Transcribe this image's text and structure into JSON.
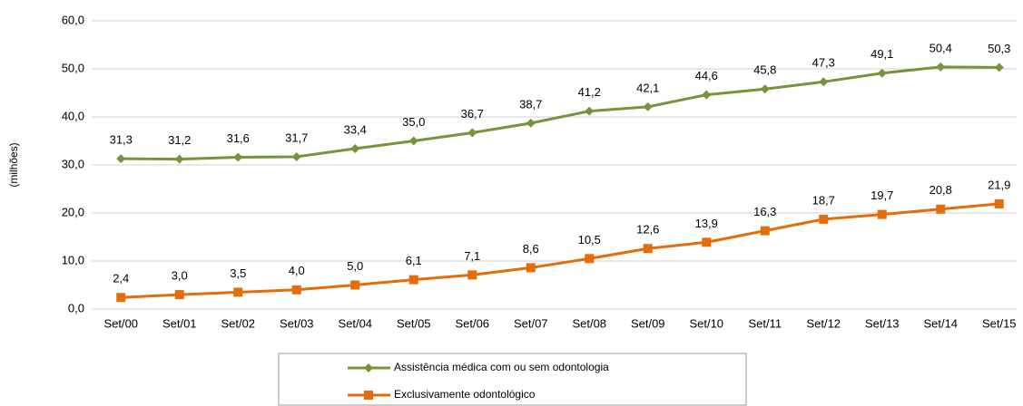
{
  "chart_data": {
    "type": "line",
    "y_label": "(milhões)",
    "categories": [
      "Set/00",
      "Set/01",
      "Set/02",
      "Set/03",
      "Set/04",
      "Set/05",
      "Set/06",
      "Set/07",
      "Set/08",
      "Set/09",
      "Set/10",
      "Set/11",
      "Set/12",
      "Set/13",
      "Set/14",
      "Set/15"
    ],
    "series": [
      {
        "name": "Assistência médica com ou sem odontologia",
        "color": "#77933c",
        "marker": "diamond",
        "values": [
          31.3,
          31.2,
          31.6,
          31.7,
          33.4,
          35.0,
          36.7,
          38.7,
          41.2,
          42.1,
          44.6,
          45.8,
          47.3,
          49.1,
          50.4,
          50.3
        ],
        "value_labels": [
          "31,3",
          "31,2",
          "31,6",
          "31,7",
          "33,4",
          "35,0",
          "36,7",
          "38,7",
          "41,2",
          "42,1",
          "44,6",
          "45,8",
          "47,3",
          "49,1",
          "50,4",
          "50,3"
        ]
      },
      {
        "name": "Exclusivamente odontológico",
        "color": "#e46c0a",
        "marker": "square",
        "values": [
          2.4,
          3.0,
          3.5,
          4.0,
          5.0,
          6.1,
          7.1,
          8.6,
          10.5,
          12.6,
          13.9,
          16.3,
          18.7,
          19.7,
          20.8,
          21.9
        ],
        "value_labels": [
          "2,4",
          "3,0",
          "3,5",
          "4,0",
          "5,0",
          "6,1",
          "7,1",
          "8,6",
          "10,5",
          "12,6",
          "13,9",
          "16,3",
          "18,7",
          "19,7",
          "20,8",
          "21,9"
        ]
      }
    ],
    "ylim": [
      0,
      60
    ],
    "yticks": [
      {
        "value": 0,
        "label": "0,0"
      },
      {
        "value": 10,
        "label": "10,0"
      },
      {
        "value": 20,
        "label": "20,0"
      },
      {
        "value": 30,
        "label": "30,0"
      },
      {
        "value": 40,
        "label": "40,0"
      },
      {
        "value": 50,
        "label": "50,0"
      },
      {
        "value": 60,
        "label": "60,0"
      }
    ],
    "grid": true,
    "legend_position": "bottom"
  }
}
